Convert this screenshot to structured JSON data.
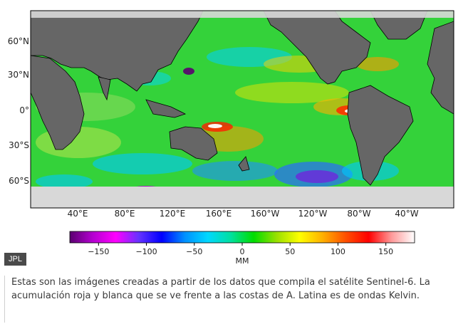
{
  "map": {
    "lat_labels": [
      "60°N",
      "30°N",
      "0°",
      "30°S",
      "60°S"
    ],
    "lon_labels": [
      "40°E",
      "80°E",
      "120°E",
      "160°E",
      "160°W",
      "120°W",
      "80°W",
      "40°W"
    ]
  },
  "colorbar": {
    "ticks": [
      "−150",
      "−100",
      "−50",
      "0",
      "50",
      "100",
      "150"
    ],
    "unit": "MM",
    "range": [
      -180,
      180
    ],
    "colors": [
      "#5a0070",
      "#b400d0",
      "#ff00ff",
      "#6633ff",
      "#0000ff",
      "#0090ff",
      "#00d8ff",
      "#00e0a0",
      "#00dd00",
      "#9ae000",
      "#ffff00",
      "#ffb000",
      "#ff5000",
      "#ff0000",
      "#ff9a9a",
      "#ffffff"
    ]
  },
  "credit": "JPL",
  "caption": "Estas son las imágenes creadas a partir de los datos que compila el satélite Sentinel-6. La acumulación roja y blanca que se ve frente a las costas de A. Latina es de ondas Kelvin."
}
